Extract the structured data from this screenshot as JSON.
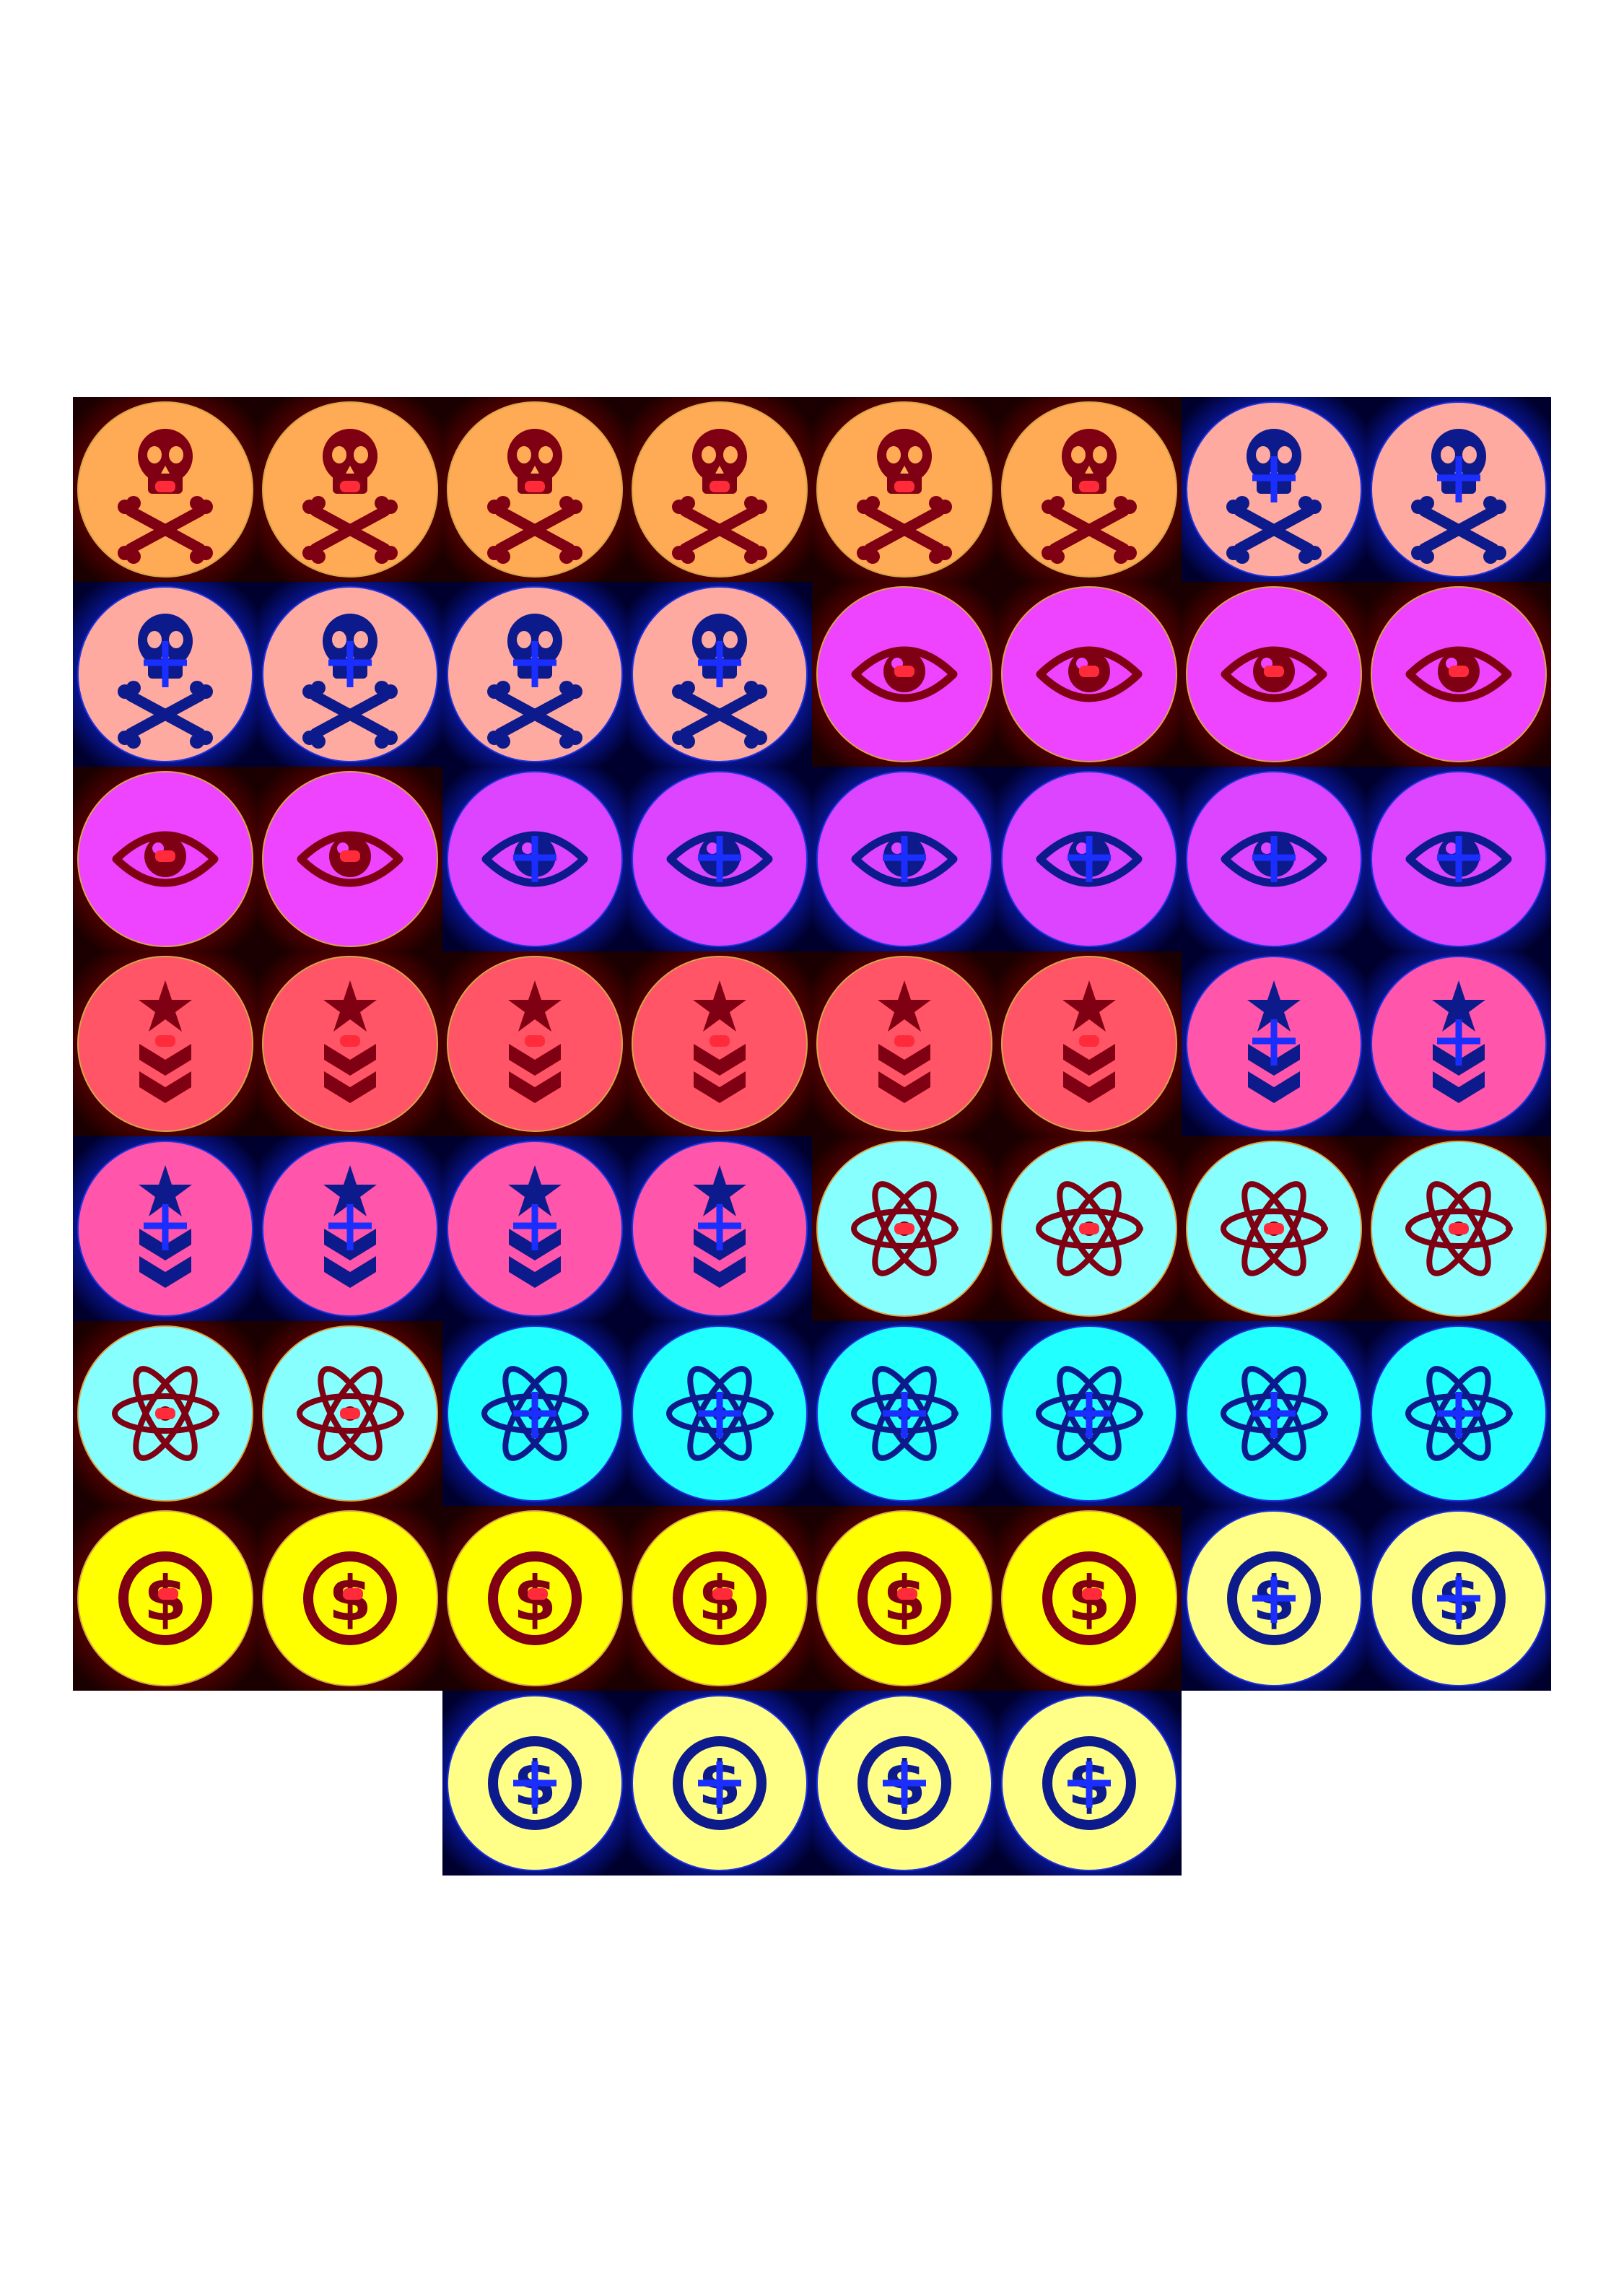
{
  "sheet": {
    "background": "#ffffff",
    "factions": {
      "red": {
        "tile_glow": "#5a0000",
        "tile_edge": "#1a0000",
        "ring_color": "#d7a64a",
        "icon_color": "#7f0012",
        "mark_color": "#ff2b3a"
      },
      "blue": {
        "tile_glow": "#0a1aa8",
        "tile_edge": "#00002e",
        "ring_color": "#2233dd",
        "icon_color": "#0d1a8c",
        "mark_color": "#1a2eff"
      }
    },
    "token_types": [
      {
        "id": "skull",
        "icon": "skull-crossbones-icon",
        "red_fill": "#ffaa55",
        "blue_fill": "#ffaaa0",
        "count_red": 6,
        "count_blue": 6
      },
      {
        "id": "eye",
        "icon": "eye-icon",
        "red_fill": "#ee44ff",
        "blue_fill": "#dd44ff",
        "count_red": 6,
        "count_blue": 6
      },
      {
        "id": "rank",
        "icon": "star-chevron-icon",
        "red_fill": "#ff5566",
        "blue_fill": "#ff55aa",
        "count_red": 6,
        "count_blue": 6
      },
      {
        "id": "atom",
        "icon": "atom-icon",
        "red_fill": "#88ffff",
        "blue_fill": "#22ffff",
        "count_red": 6,
        "count_blue": 6
      },
      {
        "id": "money",
        "icon": "dollar-coin-icon",
        "red_fill": "#ffff00",
        "blue_fill": "#ffff88",
        "count_red": 6,
        "count_blue": 6
      }
    ]
  }
}
